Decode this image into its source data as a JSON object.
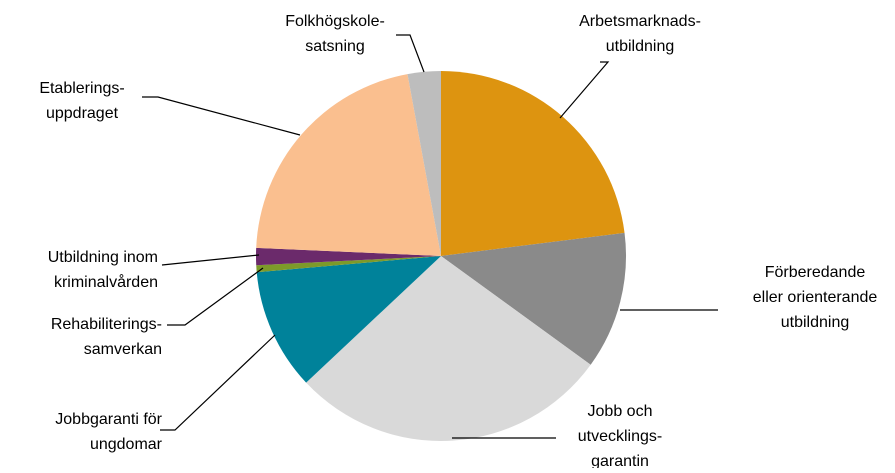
{
  "chart_data": {
    "type": "pie",
    "categories": [
      "Arbetsmarknads-\nutbildning",
      "Förberedande\neller orienterande\nutbildning",
      "Jobb och\nutvecklings-\ngarantin",
      "Jobbgaranti för\nungdomar",
      "Rehabiliterings-\nsamverkan",
      "Utbildning inom\nkriminalvården",
      "Etablerings-\nuppdraget",
      "Folkhögskole-\nsatsning"
    ],
    "values": [
      23,
      12,
      28,
      10.6,
      0.6,
      1.5,
      21.4,
      2.9
    ],
    "colors": [
      "#dd9410",
      "#8a8a8a",
      "#d9d9d9",
      "#00829a",
      "#7d9a2a",
      "#6b2a6b",
      "#fabf8f",
      "#bdbdbd"
    ]
  }
}
